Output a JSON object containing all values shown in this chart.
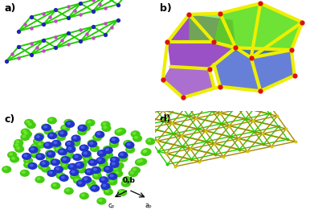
{
  "figsize": [
    3.86,
    2.76
  ],
  "dpi": 100,
  "bg_color": "#ffffff",
  "panel_labels": [
    "a)",
    "b)",
    "c)",
    "d)"
  ],
  "panel_label_fontsize": 9,
  "panel_label_fontweight": "bold",
  "axis_label_text": "0,b",
  "axis_cp": "cₚ",
  "axis_ap": "aₚ",
  "green_color": "#22cc00",
  "blue_node_color": "#2222bb",
  "pink_node_color": "#cc44cc",
  "red_node_color": "#dd1111",
  "yellow_color": "#eeee00",
  "purple_color": "#8833bb",
  "lime_color": "#55dd11",
  "blue_face_color": "#3355cc",
  "gold_color": "#aa8800",
  "sphere_green": "#44cc11",
  "sphere_blue": "#2233cc"
}
